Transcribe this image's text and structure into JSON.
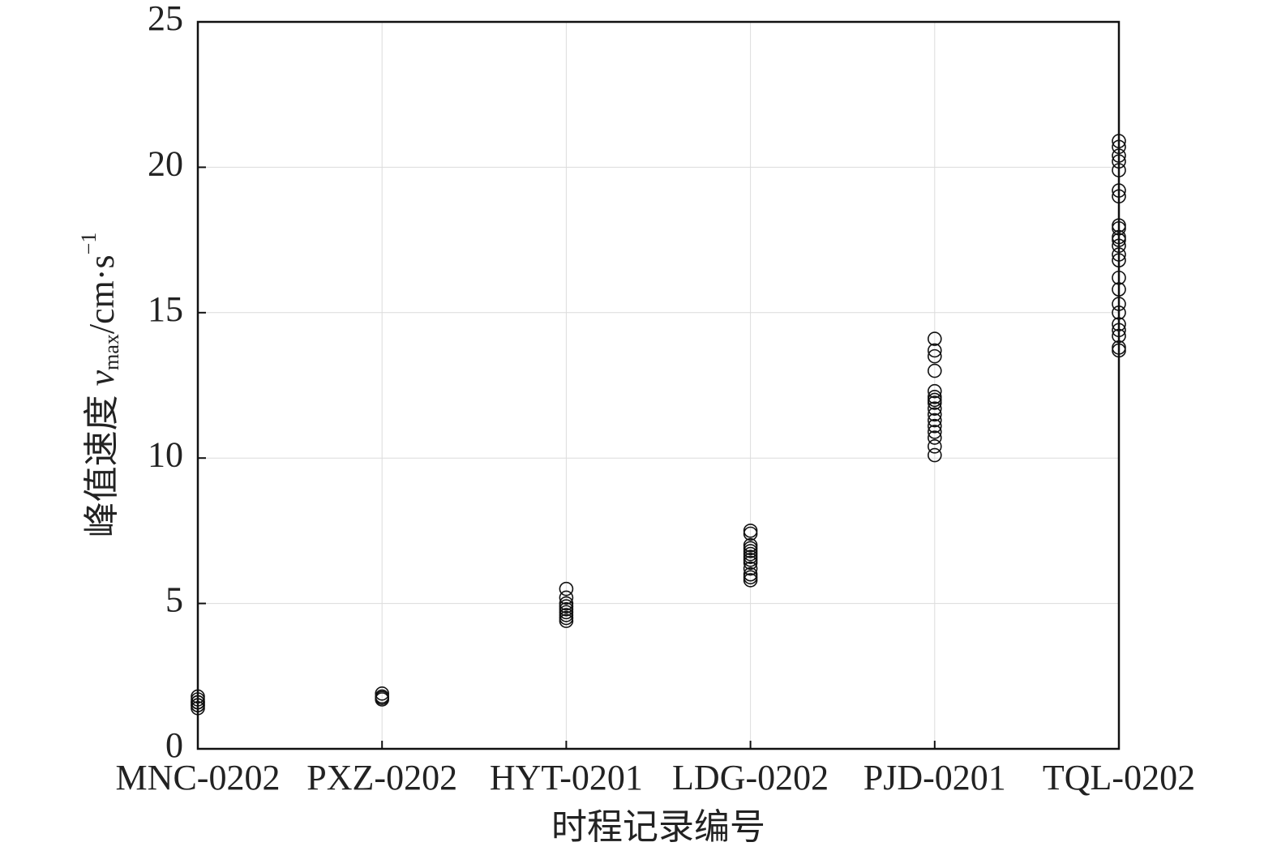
{
  "chart_data": {
    "type": "scatter",
    "x_label": "时程记录编号",
    "y_label_parts": [
      "峰值速度 ",
      "v",
      "max",
      "/cm·s",
      "−1"
    ],
    "categories": [
      "MNC-0202",
      "PXZ-0202",
      "HYT-0201",
      "LDG-0202",
      "PJD-0201",
      "TQL-0202"
    ],
    "points": [
      [
        1.4,
        1.5,
        1.6,
        1.7,
        1.8,
        1.5,
        1.6
      ],
      [
        1.7,
        1.8,
        1.9,
        1.75
      ],
      [
        4.4,
        4.5,
        4.6,
        4.7,
        4.8,
        4.9,
        5.0,
        5.2,
        5.5
      ],
      [
        5.8,
        5.9,
        6.0,
        6.2,
        6.4,
        6.5,
        6.6,
        6.7,
        6.8,
        6.9,
        7.0,
        7.4,
        7.5
      ],
      [
        10.1,
        10.4,
        10.7,
        10.9,
        11.1,
        11.3,
        11.5,
        11.7,
        11.9,
        12.0,
        12.1,
        12.3,
        13.0,
        13.5,
        13.7,
        14.1
      ],
      [
        13.7,
        13.8,
        14.2,
        14.4,
        14.6,
        15.0,
        15.3,
        15.8,
        16.2,
        16.8,
        17.0,
        17.3,
        17.5,
        17.6,
        17.9,
        18.0,
        19.0,
        19.2,
        19.9,
        20.2,
        20.4,
        20.7,
        20.9
      ]
    ],
    "color": "#111111",
    "ylim": [
      0,
      25
    ],
    "yticks": [
      0,
      5,
      10,
      15,
      20,
      25
    ],
    "grid": true
  }
}
